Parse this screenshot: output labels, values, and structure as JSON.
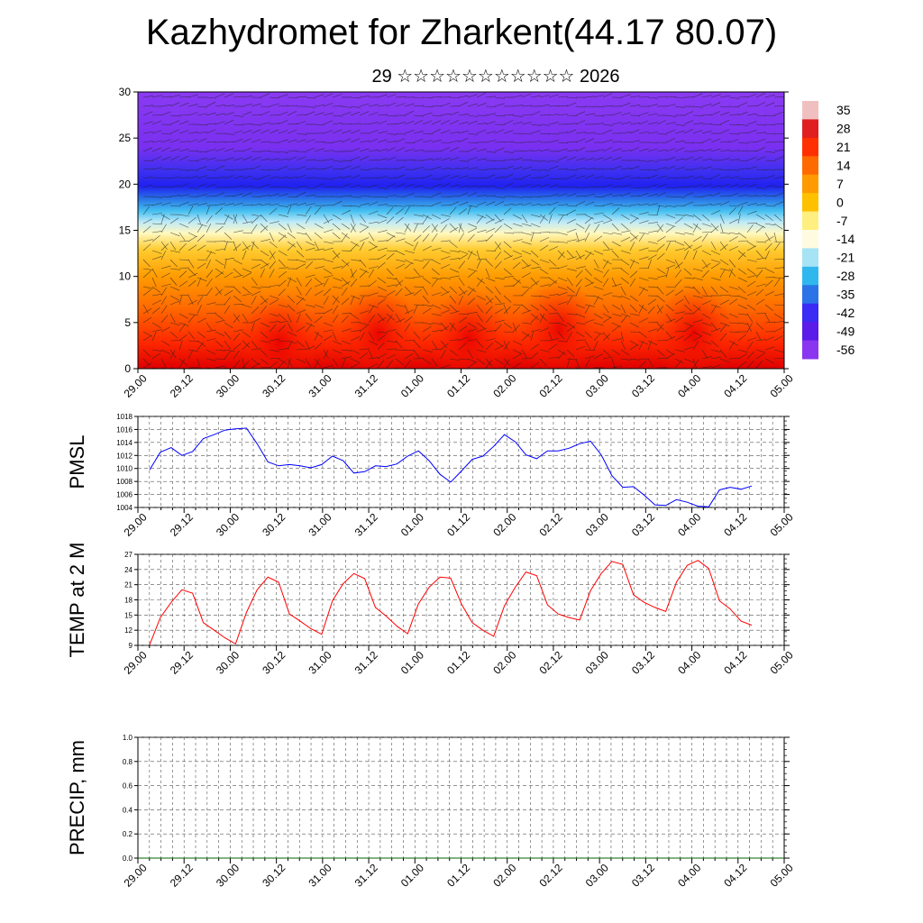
{
  "title": "Kazhydromet for Zharkent(44.17 80.07)",
  "subtitle": "29 ☆☆☆☆☆☆☆☆☆☆☆ 2026",
  "colors": {
    "pmsl_line": "#0000ff",
    "temp_line": "#ff0000",
    "precip_line": "#006400",
    "grid": "#000000"
  },
  "time_ticks": [
    "29.00",
    "29.12",
    "30.00",
    "30.12",
    "31.00",
    "31.12",
    "01.00",
    "01.12",
    "02.00",
    "02.12",
    "03.00",
    "03.12",
    "04.00",
    "04.12",
    "05.00"
  ],
  "chart_data": [
    {
      "type": "heatmap",
      "name": "upper-air cross section",
      "ylim": [
        0,
        30
      ],
      "yticks": [
        0,
        5,
        10,
        15,
        20,
        25,
        30
      ],
      "colorbar_labels": [
        "35",
        "28",
        "21",
        "14",
        "7",
        "0",
        "-7",
        "-14",
        "-21",
        "-28",
        "-35",
        "-42",
        "-49",
        "-56"
      ],
      "colorbar_colors": [
        "#f0c0c0",
        "#e02020",
        "#ff3000",
        "#ff6a00",
        "#ff9a00",
        "#ffc000",
        "#ffef80",
        "#fffbe0",
        "#a6e3f5",
        "#30b8ee",
        "#2a74e8",
        "#3a2bf5",
        "#5a1ae8",
        "#8a35f0"
      ]
    },
    {
      "type": "line",
      "ylabel": "PMSL",
      "ylim": [
        1004,
        1018
      ],
      "yticks": [
        1004,
        1006,
        1008,
        1010,
        1012,
        1014,
        1016,
        1018
      ],
      "values": [
        1009.8,
        1012.5,
        1013.2,
        1012.0,
        1012.6,
        1014.6,
        1015.2,
        1015.9,
        1016.1,
        1016.2,
        1013.8,
        1011.0,
        1010.4,
        1010.6,
        1010.4,
        1010.1,
        1010.6,
        1011.9,
        1011.2,
        1009.3,
        1009.5,
        1010.4,
        1010.3,
        1010.7,
        1011.9,
        1012.7,
        1011.2,
        1009.1,
        1007.9,
        1009.6,
        1011.4,
        1011.9,
        1013.4,
        1015.2,
        1014.1,
        1012.1,
        1011.5,
        1012.7,
        1012.7,
        1013.1,
        1013.8,
        1014.2,
        1012.1,
        1008.9,
        1007.1,
        1007.2,
        1005.9,
        1004.4,
        1004.3,
        1005.2,
        1004.8,
        1004.2,
        1004.1,
        1006.7,
        1007.1,
        1006.8,
        1007.3
      ]
    },
    {
      "type": "line",
      "ylabel": "TEMP at 2 M",
      "ylim": [
        9,
        27
      ],
      "yticks": [
        9,
        12,
        15,
        18,
        21,
        24,
        27
      ],
      "values": [
        9.1,
        14.5,
        17.5,
        20.0,
        19.3,
        13.5,
        12.0,
        10.5,
        9.3,
        15.5,
        20.0,
        22.5,
        21.5,
        15.2,
        13.8,
        12.3,
        11.2,
        17.8,
        21.2,
        23.2,
        22.2,
        16.5,
        14.8,
        12.8,
        11.3,
        17.2,
        20.5,
        22.5,
        22.3,
        17.2,
        13.5,
        12.0,
        10.8,
        16.8,
        20.5,
        23.5,
        22.8,
        17.0,
        15.2,
        14.5,
        14.0,
        19.8,
        23.2,
        25.6,
        25.0,
        19.0,
        17.5,
        16.5,
        15.7,
        21.5,
        24.8,
        25.8,
        24.2,
        17.8,
        16.2,
        13.8,
        13.0
      ]
    },
    {
      "type": "line",
      "ylabel": "PRECIP, mm",
      "ylim": [
        0,
        1
      ],
      "yticks": [
        "0.0",
        "0.2",
        "0.4",
        "0.6",
        "0.8",
        "1.0"
      ],
      "values": [
        0,
        0,
        0,
        0,
        0,
        0,
        0,
        0,
        0,
        0,
        0,
        0,
        0,
        0,
        0,
        0,
        0,
        0,
        0,
        0,
        0,
        0,
        0,
        0,
        0,
        0,
        0,
        0,
        0,
        0,
        0,
        0,
        0,
        0,
        0,
        0,
        0,
        0,
        0,
        0,
        0,
        0,
        0,
        0,
        0,
        0,
        0,
        0,
        0,
        0,
        0,
        0,
        0,
        0,
        0,
        0,
        0
      ]
    }
  ]
}
